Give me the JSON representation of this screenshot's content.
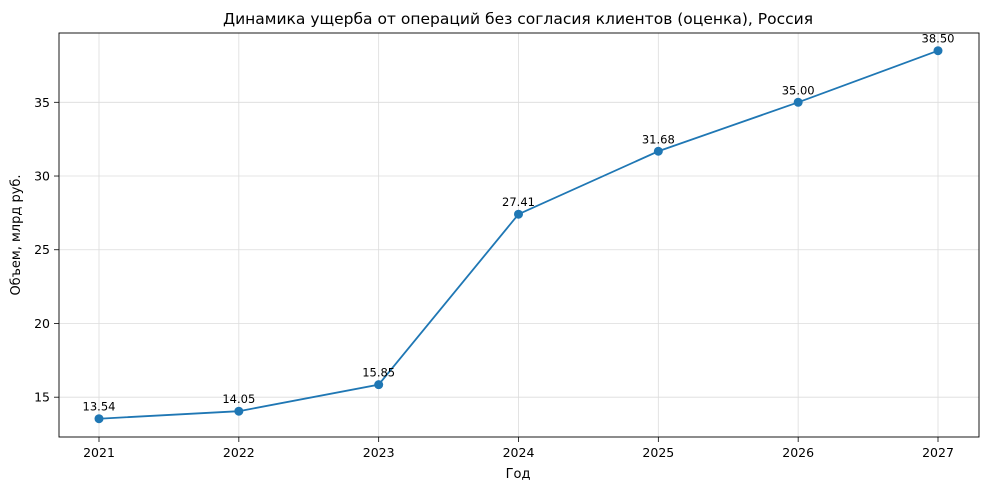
{
  "chart_data": {
    "type": "line",
    "title": "Динамика ущерба от операций без согласия клиентов (оценка), Россия",
    "xlabel": "Год",
    "ylabel": "Объем, млрд руб.",
    "x": [
      "2021",
      "2022",
      "2023",
      "2024",
      "2025",
      "2026",
      "2027"
    ],
    "series": [
      {
        "values": [
          13.54,
          14.05,
          15.85,
          27.41,
          31.68,
          35.0,
          38.5
        ],
        "labels": [
          "13.54",
          "14.05",
          "15.85",
          "27.41",
          "31.68",
          "35.00",
          "38.50"
        ],
        "color": "#1f77b4"
      }
    ],
    "yticks": [
      "15",
      "20",
      "25",
      "30",
      "35"
    ],
    "ylim": [
      12.3,
      39.7
    ],
    "grid": true,
    "marker": "circle"
  }
}
